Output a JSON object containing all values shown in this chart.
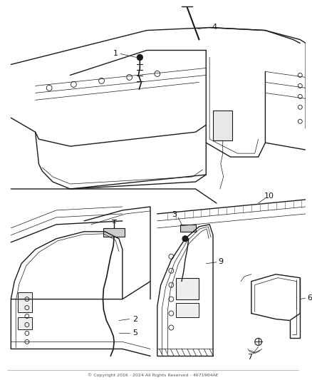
{
  "background_color": "#ffffff",
  "line_color": "#1a1a1a",
  "label_color": "#111111",
  "fig_width": 4.38,
  "fig_height": 5.33,
  "dpi": 100,
  "footer_text": "© Copyright 2016 - 2024 All Rights Reserved - 4671904AE",
  "lw_main": 1.0,
  "lw_thin": 0.5,
  "lw_thick": 1.5
}
